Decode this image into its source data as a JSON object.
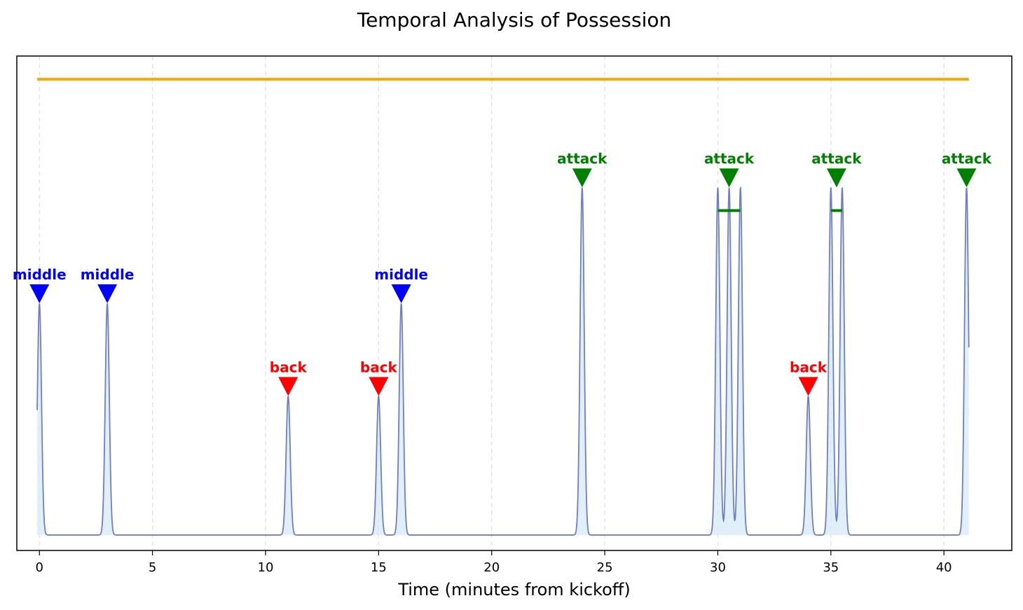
{
  "chart_data": {
    "type": "line",
    "title": "Temporal Analysis of Possession",
    "xlabel": "Time (minutes from kickoff)",
    "ylabel": "",
    "xlim": [
      -1,
      43
    ],
    "ylim": [
      -0.2,
      6.2
    ],
    "xticks": [
      0,
      5,
      10,
      15,
      20,
      25,
      30,
      35,
      40
    ],
    "grid": {
      "x": true,
      "y": false,
      "style": "dashed"
    },
    "baseline": 0,
    "possession_bar": {
      "start": -0.1,
      "end": 41.1,
      "level": 5.9,
      "color": "#ffa500"
    },
    "events": [
      {
        "time": 0,
        "zone": "middle",
        "height": 3.0
      },
      {
        "time": 3,
        "zone": "middle",
        "height": 3.0
      },
      {
        "time": 11,
        "zone": "back",
        "height": 1.8
      },
      {
        "time": 15,
        "zone": "back",
        "height": 1.8
      },
      {
        "time": 16,
        "zone": "middle",
        "height": 3.0
      },
      {
        "time": 24,
        "zone": "attack",
        "height": 4.5
      },
      {
        "time": 30,
        "zone": "attack",
        "height": 4.5
      },
      {
        "time": 30.5,
        "zone": "attack",
        "height": 4.5
      },
      {
        "time": 31,
        "zone": "attack",
        "height": 4.5
      },
      {
        "time": 34,
        "zone": "back",
        "height": 1.8
      },
      {
        "time": 35,
        "zone": "attack",
        "height": 4.5
      },
      {
        "time": 35.5,
        "zone": "attack",
        "height": 4.5
      },
      {
        "time": 41,
        "zone": "attack",
        "height": 4.5
      }
    ],
    "annotations": [
      {
        "time": 0,
        "label": "middle",
        "zone": "middle",
        "level": 3.0
      },
      {
        "time": 3,
        "label": "middle",
        "zone": "middle",
        "level": 3.0
      },
      {
        "time": 11,
        "label": "back",
        "zone": "back",
        "level": 1.8
      },
      {
        "time": 15,
        "label": "back",
        "zone": "back",
        "level": 1.8
      },
      {
        "time": 16,
        "label": "middle",
        "zone": "middle",
        "level": 3.0
      },
      {
        "time": 24,
        "label": "attack",
        "zone": "attack",
        "level": 4.5
      },
      {
        "time": 30.5,
        "label": "attack",
        "zone": "attack",
        "level": 4.5
      },
      {
        "time": 34,
        "label": "back",
        "zone": "back",
        "level": 1.8
      },
      {
        "time": 35.25,
        "label": "attack",
        "zone": "attack",
        "level": 4.5
      },
      {
        "time": 41,
        "label": "attack",
        "zone": "attack",
        "level": 4.5
      }
    ],
    "ranges": [
      {
        "start": 30,
        "end": 31,
        "level": 4.2,
        "zone": "attack"
      },
      {
        "start": 35,
        "end": 35.5,
        "level": 4.2,
        "zone": "attack"
      }
    ],
    "zone_colors": {
      "middle": "#0000ff",
      "back": "#ff0000",
      "attack": "#008000"
    },
    "line_color": "#6f7fbf",
    "fill_color": "#d6eaf8"
  }
}
